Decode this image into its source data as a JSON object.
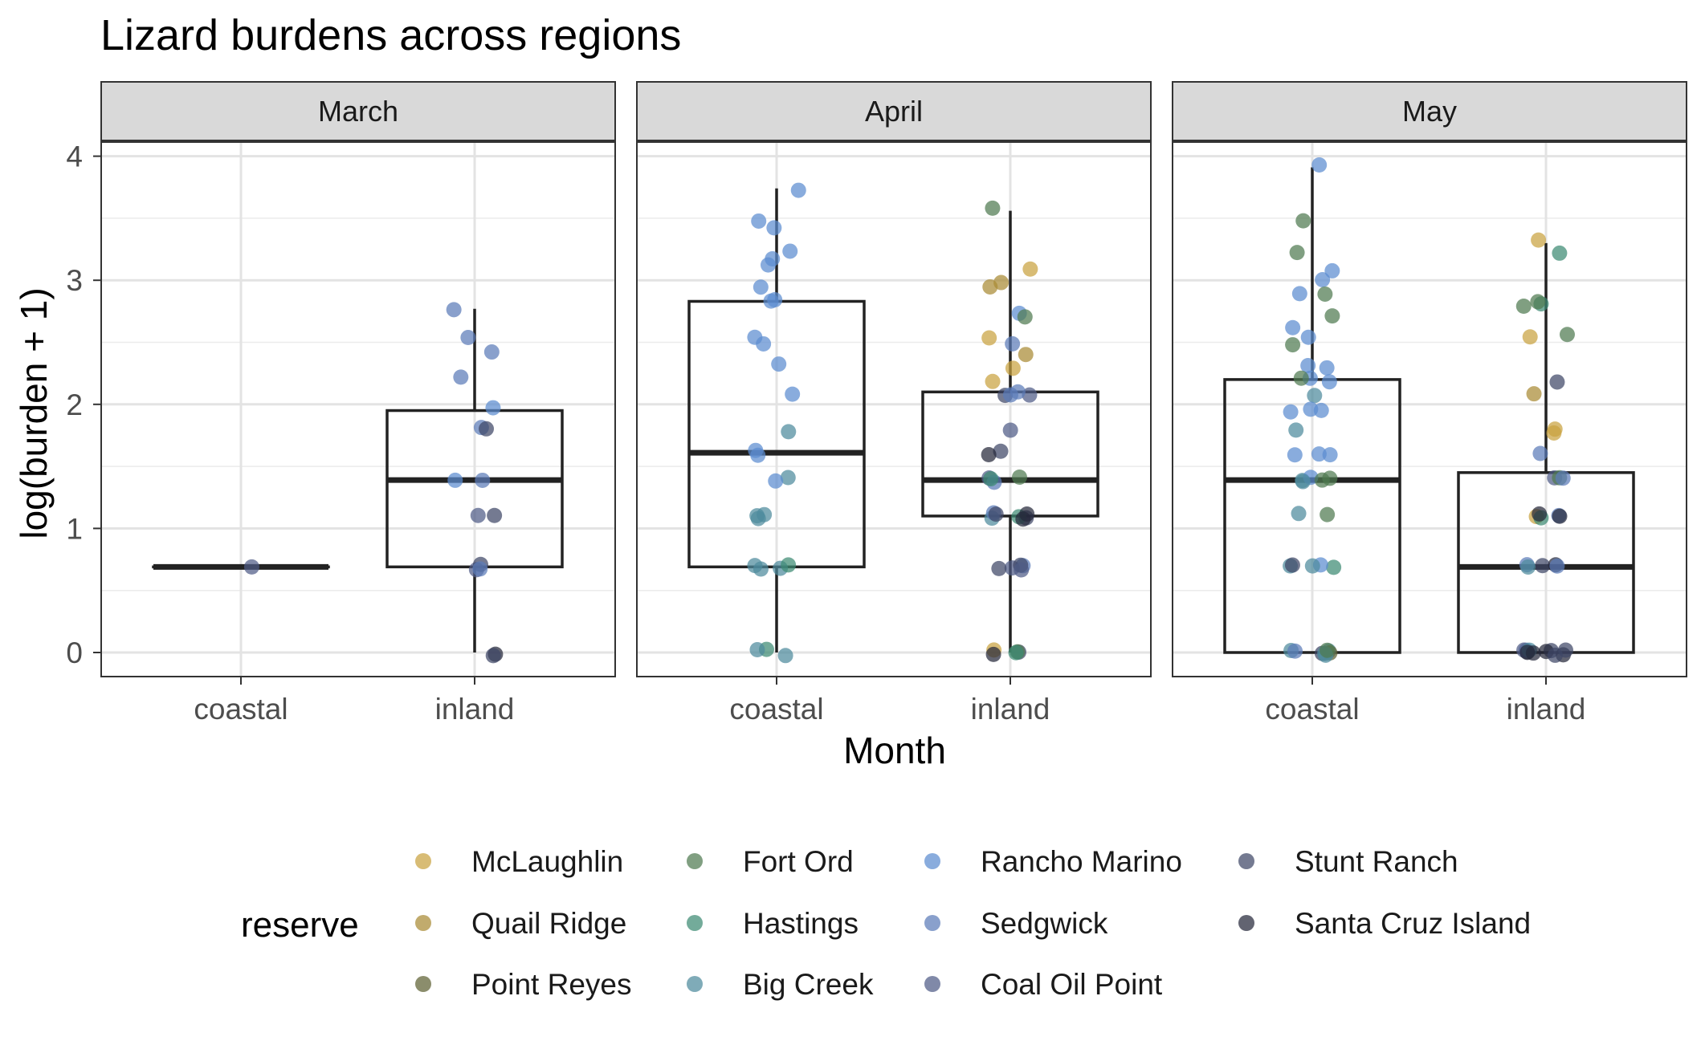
{
  "chart_data": {
    "type": "boxplot",
    "title": "Lizard burdens across regions",
    "xlabel": "Month",
    "ylabel": "log(burden + 1)",
    "ylim": [
      -0.2,
      4.5
    ],
    "yticks": [
      "0",
      "1",
      "2",
      "3",
      "4"
    ],
    "categories": [
      "coastal",
      "inland"
    ],
    "grid": true,
    "legend": {
      "title": "reserve",
      "position": "bottom",
      "items": [
        {
          "name": "McLaughlin",
          "color": "#C9A240"
        },
        {
          "name": "Quail Ridge",
          "color": "#A98A35"
        },
        {
          "name": "Point Reyes",
          "color": "#5E6133"
        },
        {
          "name": "Fort Ord",
          "color": "#4F7A50"
        },
        {
          "name": "Hastings",
          "color": "#3D8A73"
        },
        {
          "name": "Big Creek",
          "color": "#4E8A9C"
        },
        {
          "name": "Rancho Marino",
          "color": "#5B8CD0"
        },
        {
          "name": "Sedgwick",
          "color": "#5B7BB8"
        },
        {
          "name": "Coal Oil Point",
          "color": "#4F5B86"
        },
        {
          "name": "Stunt Ranch",
          "color": "#3F4766"
        },
        {
          "name": "Santa Cruz Island",
          "color": "#25283A"
        }
      ]
    },
    "panels": [
      {
        "label": "March",
        "boxes": [
          {
            "category": "coastal",
            "min": 0.69,
            "q1": 0.69,
            "median": 0.69,
            "q3": 0.69,
            "max": 0.69
          },
          {
            "category": "inland",
            "min": 0.0,
            "q1": 0.69,
            "median": 1.39,
            "q3": 1.95,
            "max": 2.77
          }
        ],
        "points": {
          "coastal": [
            {
              "y": 0.69,
              "r": "Coal Oil Point"
            }
          ],
          "inland": [
            {
              "y": 2.77,
              "r": "Sedgwick"
            },
            {
              "y": 2.56,
              "r": "Sedgwick"
            },
            {
              "y": 2.4,
              "r": "Sedgwick"
            },
            {
              "y": 2.2,
              "r": "Sedgwick"
            },
            {
              "y": 1.95,
              "r": "Rancho Marino"
            },
            {
              "y": 1.79,
              "r": "Sedgwick"
            },
            {
              "y": 1.79,
              "r": "Stunt Ranch"
            },
            {
              "y": 1.39,
              "r": "Rancho Marino"
            },
            {
              "y": 1.39,
              "r": "Sedgwick"
            },
            {
              "y": 1.1,
              "r": "Stunt Ranch"
            },
            {
              "y": 1.1,
              "r": "Coal Oil Point"
            },
            {
              "y": 0.69,
              "r": "Coal Oil Point"
            },
            {
              "y": 0.69,
              "r": "Stunt Ranch"
            },
            {
              "y": 0.69,
              "r": "Sedgwick"
            },
            {
              "y": 0.0,
              "r": "Santa Cruz Island"
            },
            {
              "y": 0.0,
              "r": "Stunt Ranch"
            }
          ]
        }
      },
      {
        "label": "April",
        "boxes": [
          {
            "category": "coastal",
            "min": 0.0,
            "q1": 0.69,
            "median": 1.61,
            "q3": 2.83,
            "max": 3.74
          },
          {
            "category": "inland",
            "min": 0.0,
            "q1": 1.1,
            "median": 1.39,
            "q3": 2.1,
            "max": 3.56
          }
        ],
        "points": {
          "coastal": [
            {
              "y": 3.74,
              "r": "Rancho Marino"
            },
            {
              "y": 3.5,
              "r": "Rancho Marino"
            },
            {
              "y": 3.4,
              "r": "Rancho Marino"
            },
            {
              "y": 3.23,
              "r": "Rancho Marino"
            },
            {
              "y": 3.15,
              "r": "Rancho Marino"
            },
            {
              "y": 3.14,
              "r": "Rancho Marino"
            },
            {
              "y": 2.94,
              "r": "Rancho Marino"
            },
            {
              "y": 2.83,
              "r": "Rancho Marino"
            },
            {
              "y": 2.83,
              "r": "Rancho Marino"
            },
            {
              "y": 2.56,
              "r": "Rancho Marino"
            },
            {
              "y": 2.49,
              "r": "Rancho Marino"
            },
            {
              "y": 2.3,
              "r": "Rancho Marino"
            },
            {
              "y": 2.08,
              "r": "Rancho Marino"
            },
            {
              "y": 1.79,
              "r": "Big Creek"
            },
            {
              "y": 1.61,
              "r": "Rancho Marino"
            },
            {
              "y": 1.61,
              "r": "Rancho Marino"
            },
            {
              "y": 1.39,
              "r": "Big Creek"
            },
            {
              "y": 1.39,
              "r": "Rancho Marino"
            },
            {
              "y": 1.1,
              "r": "Big Creek"
            },
            {
              "y": 1.1,
              "r": "Big Creek"
            },
            {
              "y": 1.1,
              "r": "Big Creek"
            },
            {
              "y": 0.69,
              "r": "Big Creek"
            },
            {
              "y": 0.69,
              "r": "Big Creek"
            },
            {
              "y": 0.69,
              "r": "Big Creek"
            },
            {
              "y": 0.69,
              "r": "Hastings"
            },
            {
              "y": 0.0,
              "r": "Big Creek"
            },
            {
              "y": 0.0,
              "r": "Hastings"
            },
            {
              "y": 0.0,
              "r": "Big Creek"
            }
          ],
          "inland": [
            {
              "y": 3.56,
              "r": "Fort Ord"
            },
            {
              "y": 3.09,
              "r": "McLaughlin"
            },
            {
              "y": 3.0,
              "r": "Quail Ridge"
            },
            {
              "y": 2.94,
              "r": "Quail Ridge"
            },
            {
              "y": 2.71,
              "r": "Rancho Marino"
            },
            {
              "y": 2.71,
              "r": "Fort Ord"
            },
            {
              "y": 2.56,
              "r": "McLaughlin"
            },
            {
              "y": 2.5,
              "r": "Sedgwick"
            },
            {
              "y": 2.4,
              "r": "Quail Ridge"
            },
            {
              "y": 2.3,
              "r": "McLaughlin"
            },
            {
              "y": 2.2,
              "r": "McLaughlin"
            },
            {
              "y": 2.08,
              "r": "Stunt Ranch"
            },
            {
              "y": 2.08,
              "r": "Sedgwick"
            },
            {
              "y": 2.08,
              "r": "Coal Oil Point"
            },
            {
              "y": 2.08,
              "r": "Sedgwick"
            },
            {
              "y": 1.79,
              "r": "Coal Oil Point"
            },
            {
              "y": 1.61,
              "r": "Stunt Ranch"
            },
            {
              "y": 1.61,
              "r": "Santa Cruz Island"
            },
            {
              "y": 1.39,
              "r": "Coal Oil Point"
            },
            {
              "y": 1.39,
              "r": "Fort Ord"
            },
            {
              "y": 1.39,
              "r": "Sedgwick"
            },
            {
              "y": 1.39,
              "r": "Hastings"
            },
            {
              "y": 1.1,
              "r": "Stunt Ranch"
            },
            {
              "y": 1.1,
              "r": "Big Creek"
            },
            {
              "y": 1.1,
              "r": "Sedgwick"
            },
            {
              "y": 1.1,
              "r": "Hastings"
            },
            {
              "y": 1.1,
              "r": "Santa Cruz Island"
            },
            {
              "y": 1.1,
              "r": "Stunt Ranch"
            },
            {
              "y": 1.1,
              "r": "Santa Cruz Island"
            },
            {
              "y": 0.69,
              "r": "Sedgwick"
            },
            {
              "y": 0.69,
              "r": "Coal Oil Point"
            },
            {
              "y": 0.69,
              "r": "Stunt Ranch"
            },
            {
              "y": 0.69,
              "r": "Stunt Ranch"
            },
            {
              "y": 0.69,
              "r": "Coal Oil Point"
            },
            {
              "y": 0.0,
              "r": "Stunt Ranch"
            },
            {
              "y": 0.0,
              "r": "McLaughlin"
            },
            {
              "y": 0.0,
              "r": "Fort Ord"
            },
            {
              "y": 0.0,
              "r": "Hastings"
            },
            {
              "y": 0.0,
              "r": "Santa Cruz Island"
            }
          ]
        }
      },
      {
        "label": "May",
        "boxes": [
          {
            "category": "coastal",
            "min": 0.0,
            "q1": 0.0,
            "median": 1.39,
            "q3": 2.2,
            "max": 3.91
          },
          {
            "category": "inland",
            "min": 0.0,
            "q1": 0.0,
            "median": 0.69,
            "q3": 1.45,
            "max": 3.3
          }
        ],
        "points": {
          "coastal": [
            {
              "y": 3.91,
              "r": "Rancho Marino"
            },
            {
              "y": 3.47,
              "r": "Fort Ord"
            },
            {
              "y": 3.22,
              "r": "Fort Ord"
            },
            {
              "y": 3.1,
              "r": "Rancho Marino"
            },
            {
              "y": 3.0,
              "r": "Rancho Marino"
            },
            {
              "y": 2.89,
              "r": "Rancho Marino"
            },
            {
              "y": 2.89,
              "r": "Fort Ord"
            },
            {
              "y": 2.71,
              "r": "Fort Ord"
            },
            {
              "y": 2.64,
              "r": "Rancho Marino"
            },
            {
              "y": 2.56,
              "r": "Rancho Marino"
            },
            {
              "y": 2.48,
              "r": "Fort Ord"
            },
            {
              "y": 2.3,
              "r": "Rancho Marino"
            },
            {
              "y": 2.3,
              "r": "Rancho Marino"
            },
            {
              "y": 2.2,
              "r": "Rancho Marino"
            },
            {
              "y": 2.2,
              "r": "Fort Ord"
            },
            {
              "y": 2.2,
              "r": "Rancho Marino"
            },
            {
              "y": 2.08,
              "r": "Big Creek"
            },
            {
              "y": 1.95,
              "r": "Rancho Marino"
            },
            {
              "y": 1.95,
              "r": "Rancho Marino"
            },
            {
              "y": 1.95,
              "r": "Rancho Marino"
            },
            {
              "y": 1.79,
              "r": "Big Creek"
            },
            {
              "y": 1.61,
              "r": "Rancho Marino"
            },
            {
              "y": 1.61,
              "r": "Rancho Marino"
            },
            {
              "y": 1.61,
              "r": "Rancho Marino"
            },
            {
              "y": 1.39,
              "r": "Big Creek"
            },
            {
              "y": 1.39,
              "r": "Fort Ord"
            },
            {
              "y": 1.39,
              "r": "Rancho Marino"
            },
            {
              "y": 1.39,
              "r": "Big Creek"
            },
            {
              "y": 1.39,
              "r": "Fort Ord"
            },
            {
              "y": 1.1,
              "r": "Fort Ord"
            },
            {
              "y": 1.1,
              "r": "Big Creek"
            },
            {
              "y": 0.69,
              "r": "Hastings"
            },
            {
              "y": 0.69,
              "r": "Big Creek"
            },
            {
              "y": 0.69,
              "r": "Stunt Ranch"
            },
            {
              "y": 0.69,
              "r": "Rancho Marino"
            },
            {
              "y": 0.69,
              "r": "Big Creek"
            },
            {
              "y": 0.0,
              "r": "Big Creek"
            },
            {
              "y": 0.0,
              "r": "Stunt Ranch"
            },
            {
              "y": 0.0,
              "r": "Big Creek"
            },
            {
              "y": 0.0,
              "r": "Point Reyes"
            },
            {
              "y": 0.0,
              "r": "Big Creek"
            },
            {
              "y": 0.0,
              "r": "Sedgwick"
            },
            {
              "y": 0.0,
              "r": "Big Creek"
            },
            {
              "y": 0.0,
              "r": "Fort Ord"
            }
          ],
          "inland": [
            {
              "y": 3.3,
              "r": "McLaughlin"
            },
            {
              "y": 3.22,
              "r": "Hastings"
            },
            {
              "y": 2.83,
              "r": "Hastings"
            },
            {
              "y": 2.83,
              "r": "Fort Ord"
            },
            {
              "y": 2.77,
              "r": "Fort Ord"
            },
            {
              "y": 2.56,
              "r": "McLaughlin"
            },
            {
              "y": 2.56,
              "r": "Fort Ord"
            },
            {
              "y": 2.2,
              "r": "Stunt Ranch"
            },
            {
              "y": 2.08,
              "r": "Quail Ridge"
            },
            {
              "y": 1.79,
              "r": "McLaughlin"
            },
            {
              "y": 1.79,
              "r": "McLaughlin"
            },
            {
              "y": 1.61,
              "r": "Sedgwick"
            },
            {
              "y": 1.39,
              "r": "Coal Oil Point"
            },
            {
              "y": 1.39,
              "r": "Fort Ord"
            },
            {
              "y": 1.39,
              "r": "Sedgwick"
            },
            {
              "y": 1.1,
              "r": "Sedgwick"
            },
            {
              "y": 1.1,
              "r": "Santa Cruz Island"
            },
            {
              "y": 1.1,
              "r": "McLaughlin"
            },
            {
              "y": 1.1,
              "r": "Hastings"
            },
            {
              "y": 1.1,
              "r": "Santa Cruz Island"
            },
            {
              "y": 0.69,
              "r": "Stunt Ranch"
            },
            {
              "y": 0.69,
              "r": "Santa Cruz Island"
            },
            {
              "y": 0.69,
              "r": "Sedgwick"
            },
            {
              "y": 0.69,
              "r": "Sedgwick"
            },
            {
              "y": 0.69,
              "r": "Big Creek"
            },
            {
              "y": 0.0,
              "r": "Santa Cruz Island"
            },
            {
              "y": 0.0,
              "r": "Stunt Ranch"
            },
            {
              "y": 0.0,
              "r": "Sedgwick"
            },
            {
              "y": 0.0,
              "r": "Santa Cruz Island"
            },
            {
              "y": 0.0,
              "r": "Coal Oil Point"
            },
            {
              "y": 0.0,
              "r": "Stunt Ranch"
            },
            {
              "y": 0.0,
              "r": "Santa Cruz Island"
            },
            {
              "y": 0.0,
              "r": "Big Creek"
            },
            {
              "y": 0.0,
              "r": "Stunt Ranch"
            },
            {
              "y": 0.0,
              "r": "Santa Cruz Island"
            },
            {
              "y": 0.0,
              "r": "Santa Cruz Island"
            }
          ]
        }
      }
    ]
  }
}
